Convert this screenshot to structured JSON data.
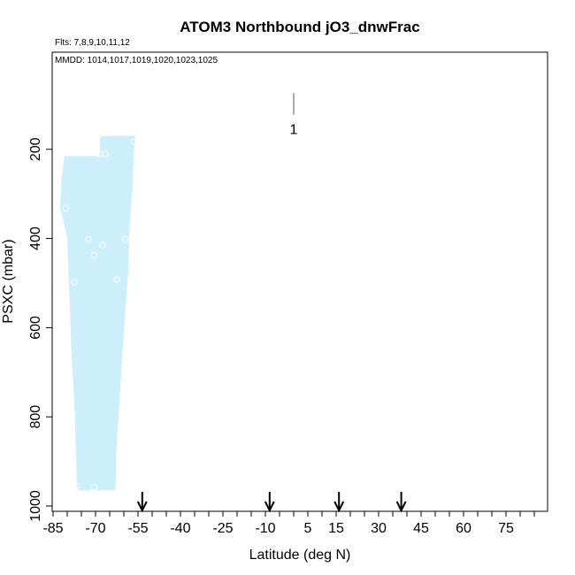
{
  "chart_data": {
    "type": "scatter",
    "title": "ATOM3 Northbound jO3_dnwFrac",
    "flights_note": "Flts: 7,8,9,10,11,12",
    "mmdd_note": "MMDD: 1014,1017,1019,1020,1023,1025",
    "xlabel": "Latitude (deg N)",
    "ylabel": "PSXC (mbar)",
    "xlim": [
      -85,
      85
    ],
    "ylim": [
      1000,
      0
    ],
    "x_ticks": [
      "-85",
      "-70",
      "-55",
      "-40",
      "-25",
      "-10",
      "5",
      "15",
      "30",
      "45",
      "60",
      "75"
    ],
    "x_tick_values": [
      -85,
      -70,
      -55,
      -40,
      -25,
      -10,
      5,
      15,
      30,
      45,
      60,
      75
    ],
    "y_ticks": [
      "200",
      "400",
      "600",
      "800",
      "1000"
    ],
    "y_tick_values": [
      200,
      400,
      600,
      800,
      1000
    ],
    "grid": false,
    "band_color": "#cdeffb",
    "band": [
      {
        "lat": -82.5,
        "p_top": 215,
        "p_bottom": 965
      },
      {
        "lat": -68.5,
        "p_top": 170,
        "p_bottom": 965
      },
      {
        "lat": -58,
        "p_top": 170,
        "p_bottom": 965
      }
    ],
    "points": [
      {
        "x": -80.5,
        "y": 332
      },
      {
        "x": -72.5,
        "y": 402
      },
      {
        "x": -70.5,
        "y": 438
      },
      {
        "x": -67.5,
        "y": 415
      },
      {
        "x": -77.5,
        "y": 498
      },
      {
        "x": -62.5,
        "y": 492
      },
      {
        "x": -59.5,
        "y": 402
      },
      {
        "x": -68.5,
        "y": 210
      },
      {
        "x": -66.5,
        "y": 210
      },
      {
        "x": -56.5,
        "y": 183
      },
      {
        "x": -76.5,
        "y": 955
      },
      {
        "x": -70.5,
        "y": 958
      },
      {
        "x": -62,
        "y": 955
      }
    ],
    "arrows": [
      -53.5,
      -8.5,
      16,
      38
    ],
    "label_marker": {
      "text": "1",
      "lat": 0,
      "p_top": 50,
      "p_bottom": 110
    }
  }
}
